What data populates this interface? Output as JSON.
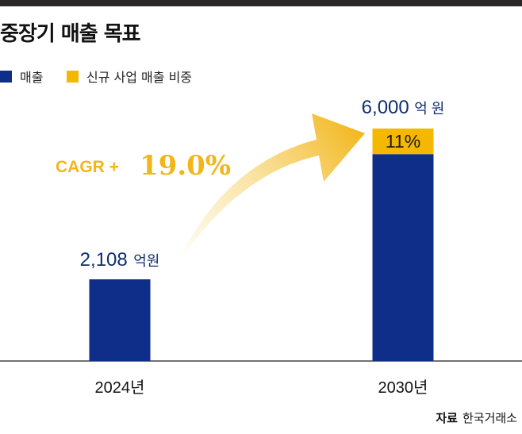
{
  "title": "중장기 매출 목표",
  "source": {
    "label": "자료",
    "value": "한국거래소"
  },
  "colors": {
    "sales": "#0f2e8a",
    "share": "#f5b800",
    "annotation": "#f2b61c",
    "value_text": "#0f2e6e",
    "axis": "#444444",
    "top_bar": "#2a2626"
  },
  "growth_annotation": {
    "label": "CAGR +",
    "value": "19.0%",
    "arrow": "curved-arrow-icon"
  },
  "chart_data": {
    "type": "bar",
    "stacked": true,
    "categories": [
      "2024년",
      "2030년"
    ],
    "series": [
      {
        "name": "매출",
        "values": [
          2108,
          5340
        ]
      },
      {
        "name": "신규 사업 매출 비중",
        "values": [
          0,
          660
        ]
      }
    ],
    "totals": [
      2108,
      6000
    ],
    "unit": "억원",
    "data_labels": {
      "totals": [
        {
          "number": "2,108",
          "unit": "억원"
        },
        {
          "number": "6,000",
          "unit": "억 원"
        }
      ],
      "share_percent": [
        null,
        "11%"
      ]
    },
    "title": "중장기 매출 목표",
    "xlabel": "",
    "ylabel": "",
    "ylim": [
      0,
      6000
    ],
    "grid": false,
    "legend_position": "top-left"
  }
}
